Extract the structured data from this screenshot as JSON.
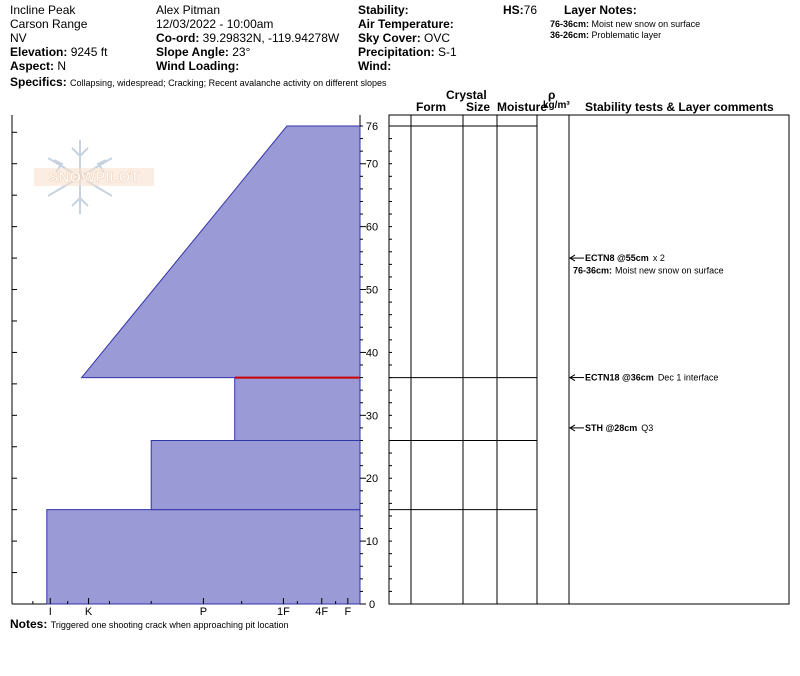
{
  "header": {
    "location": "Incline Peak",
    "range": "Carson Range",
    "state": "NV",
    "elevation_label": "Elevation:",
    "elevation_value": "9245 ft",
    "aspect_label": "Aspect:",
    "aspect_value": "N",
    "observer": "Alex Pitman",
    "datetime": "12/03/2022 - 10:00am",
    "coord_label": "Co-ord:",
    "coord_value": "39.29832N, -119.94278W",
    "slope_label": "Slope Angle:",
    "slope_value": "23°",
    "wind_loading_label": "Wind Loading:",
    "wind_loading_value": "",
    "stability_label": "Stability:",
    "stability_value": "",
    "air_temp_label": "Air Temperature:",
    "air_temp_value": "",
    "sky_label": "Sky Cover:",
    "sky_value": "OVC",
    "precip_label": "Precipitation:",
    "precip_value": "S-1",
    "wind_label": "Wind:",
    "wind_value": "",
    "hs_label": "HS:",
    "hs_value": "76",
    "layer_notes_title": "Layer Notes:",
    "layer_notes": [
      {
        "range": "76-36cm:",
        "text": "Moist new snow on surface"
      },
      {
        "range": "36-26cm:",
        "text": "Problematic layer"
      }
    ],
    "specifics_label": "Specifics:",
    "specifics_value": "Collapsing, widespread; Cracking; Recent avalanche activity on different slopes"
  },
  "columns": {
    "crystal": "Crystal",
    "form": "Form",
    "size": "Size",
    "moisture": "Moisture",
    "rho": "ρ",
    "density_unit": "kg/m³",
    "stability": "Stability tests & Layer comments"
  },
  "logo_text": "SNOWPILOT",
  "notes_label": "Notes:",
  "notes_value": "Triggered one shooting crack when approaching pit location",
  "chart_data": {
    "type": "bar",
    "title": "",
    "ylabel": "",
    "xlabel": "",
    "ylim": [
      0,
      76
    ],
    "y_ticks": [
      0,
      10,
      20,
      30,
      40,
      50,
      60,
      70,
      76
    ],
    "hardness_ticks": [
      "I",
      "K",
      "P",
      "1F",
      "4F",
      "F"
    ],
    "hardness_layers": [
      {
        "bottom": 0,
        "top": 15,
        "hardness": 0.9
      },
      {
        "bottom": 15,
        "top": 26,
        "hardness": 0.6
      },
      {
        "bottom": 26,
        "top": 36,
        "hardness": 0.36
      },
      {
        "bottom": 36,
        "top": 76,
        "hardness_bottom": 0.8,
        "hardness_top": 0.21
      }
    ],
    "highlight_interface": 36,
    "layer_boundaries": [
      76,
      36,
      26,
      15
    ],
    "tests": [
      {
        "depth": 55,
        "label": "ECTN8 @55cm",
        "suffix": "x 2"
      },
      {
        "depth": 36,
        "label": "ECTN18 @36cm",
        "suffix": "Dec 1 interface"
      },
      {
        "depth": 28,
        "label": "STH @28cm",
        "suffix": "Q3"
      }
    ],
    "layer_comments": [
      {
        "depth": 53,
        "range": "76-36cm:",
        "text": "Moist new snow on surface"
      }
    ],
    "fill_color": "#9a9ad6",
    "edge_color": "#3333aa",
    "interface_color": "#cc0000"
  }
}
